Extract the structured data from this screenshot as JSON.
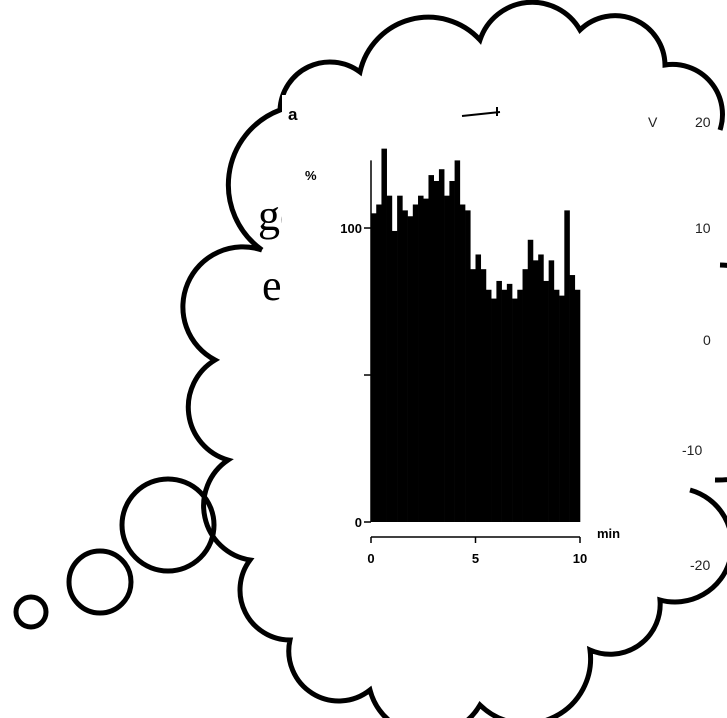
{
  "slide_text": [
    "gesia",
    "ected"
  ],
  "chart_data": {
    "type": "histogram",
    "panel_label": "a",
    "ylabel": "%",
    "xlabel": "min",
    "bins": [
      0,
      0.25,
      0.5,
      0.75,
      1,
      1.25,
      1.5,
      1.75,
      2,
      2.25,
      2.5,
      2.75,
      3,
      3.25,
      3.5,
      3.75,
      4,
      4.25,
      4.5,
      4.75,
      5,
      5.25,
      5.5,
      5.75,
      6,
      6.25,
      6.5,
      6.75,
      7,
      7.25,
      7.5,
      7.75,
      8,
      8.25,
      8.5,
      8.75,
      9,
      9.25,
      9.5,
      9.75,
      10
    ],
    "values": [
      105,
      108,
      127,
      111,
      99,
      111,
      106,
      104,
      108,
      111,
      110,
      118,
      116,
      120,
      111,
      116,
      123,
      108,
      106,
      86,
      91,
      86,
      79,
      76,
      82,
      79,
      81,
      76,
      79,
      86,
      96,
      89,
      91,
      82,
      89,
      79,
      77,
      106,
      84,
      79
    ],
    "color": "#000000",
    "xlim": [
      0,
      10
    ],
    "xticks": [
      0,
      5,
      10
    ],
    "ylim": [
      0,
      123
    ],
    "yticks": [
      0,
      {
        "value": 50,
        "label": null
      },
      100
    ]
  },
  "side_axis": {
    "label": "V",
    "ticks": [
      "20",
      "10",
      "0",
      "-10",
      "-20"
    ]
  }
}
